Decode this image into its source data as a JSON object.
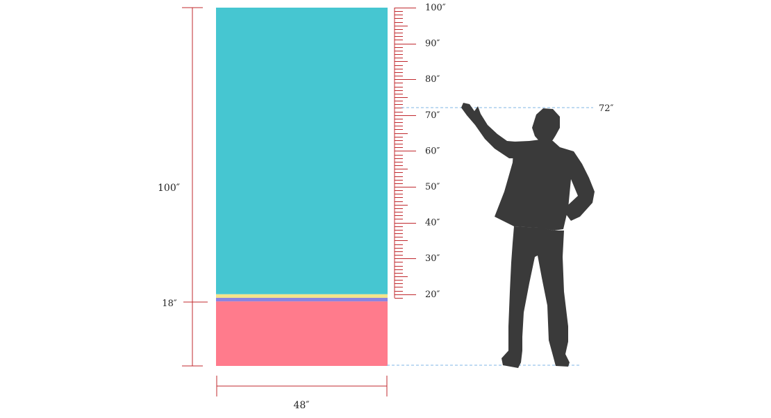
{
  "dimensions": {
    "height_label": "100″",
    "base_label": "18″",
    "width_label": "48″",
    "person_height_label": "72″"
  },
  "ruler": {
    "tick_labels": [
      "100″",
      "90″",
      "80″",
      "70″",
      "60″",
      "50″",
      "40″",
      "30″",
      "20″"
    ],
    "values": [
      100,
      90,
      80,
      70,
      60,
      50,
      40,
      30,
      20
    ],
    "min": 19,
    "max": 100
  },
  "banner": {
    "total_height": 100,
    "width": 48,
    "segments": [
      {
        "name": "base",
        "from": 0,
        "to": 18,
        "color": "#FF7B8C"
      },
      {
        "name": "purple-stripe",
        "from": 18,
        "to": 19,
        "color": "#8C84E0"
      },
      {
        "name": "yellow-stripe",
        "from": 19,
        "to": 20,
        "color": "#F5E38A"
      },
      {
        "name": "main",
        "from": 20,
        "to": 100,
        "color": "#46C6D1"
      }
    ]
  },
  "person": {
    "height": 72,
    "color": "#3A3A3A"
  },
  "colors": {
    "dimension_line": "#C0282D",
    "guide_line": "#7FB5E6"
  }
}
